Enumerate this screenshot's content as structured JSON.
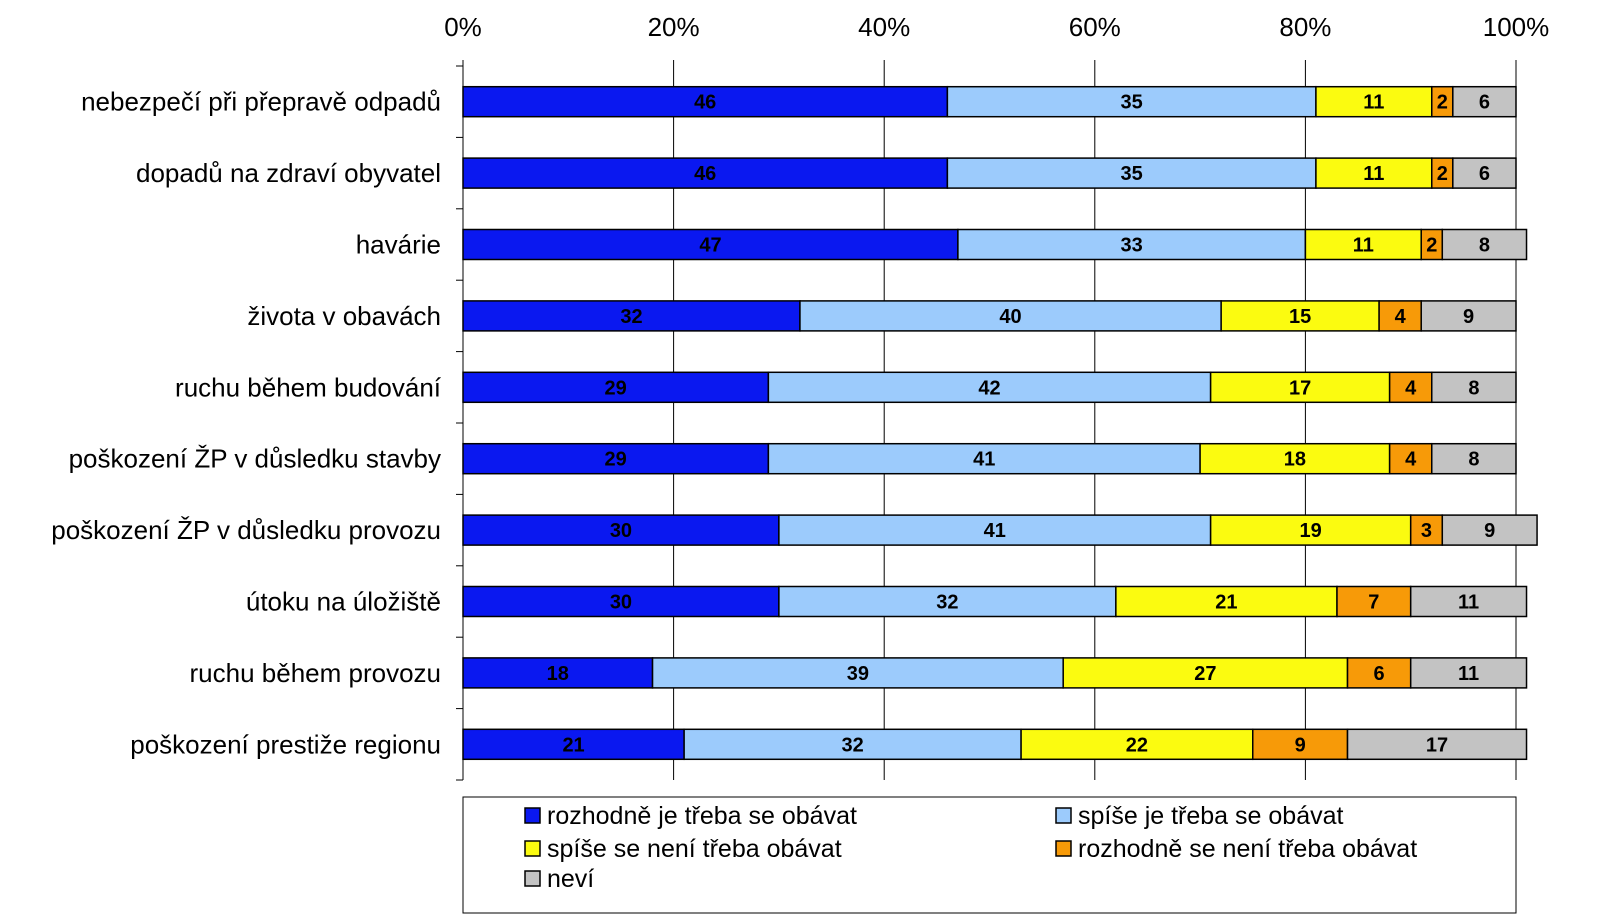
{
  "chart_data": {
    "type": "bar",
    "orientation": "horizontal",
    "stacking": "percent",
    "title": "",
    "xlabel": "",
    "ylabel": "",
    "xlim": [
      0,
      100
    ],
    "x_ticks": [
      "0%",
      "20%",
      "40%",
      "60%",
      "80%",
      "100%"
    ],
    "grid": true,
    "legend_position": "bottom",
    "categories": [
      "nebezpečí při přepravě odpadů",
      "dopadů na zdraví obyvatel",
      "havárie",
      "života v obavách",
      "ruchu během budování",
      "poškození ŽP v důsledku stavby",
      "poškození ŽP v důsledku provozu",
      "útoku na úložiště",
      "ruchu během provozu",
      "poškození prestiže regionu"
    ],
    "series": [
      {
        "name": "rozhodně je třeba se obávat",
        "color": "#0a18f0",
        "values": [
          46,
          46,
          47,
          32,
          29,
          29,
          30,
          30,
          18,
          21
        ]
      },
      {
        "name": "spíše je třeba se obávat",
        "color": "#9ccbfc",
        "values": [
          35,
          35,
          33,
          40,
          42,
          41,
          41,
          32,
          39,
          32
        ]
      },
      {
        "name": "spíše se není třeba obávat",
        "color": "#fbfb10",
        "values": [
          11,
          11,
          11,
          15,
          17,
          18,
          19,
          21,
          27,
          22
        ]
      },
      {
        "name": "rozhodně se není třeba obávat",
        "color": "#f79a08",
        "values": [
          2,
          2,
          2,
          4,
          4,
          4,
          3,
          7,
          6,
          9
        ]
      },
      {
        "name": "neví",
        "color": "#c3c3c3",
        "values": [
          6,
          6,
          8,
          9,
          8,
          8,
          9,
          11,
          11,
          17
        ]
      }
    ]
  }
}
